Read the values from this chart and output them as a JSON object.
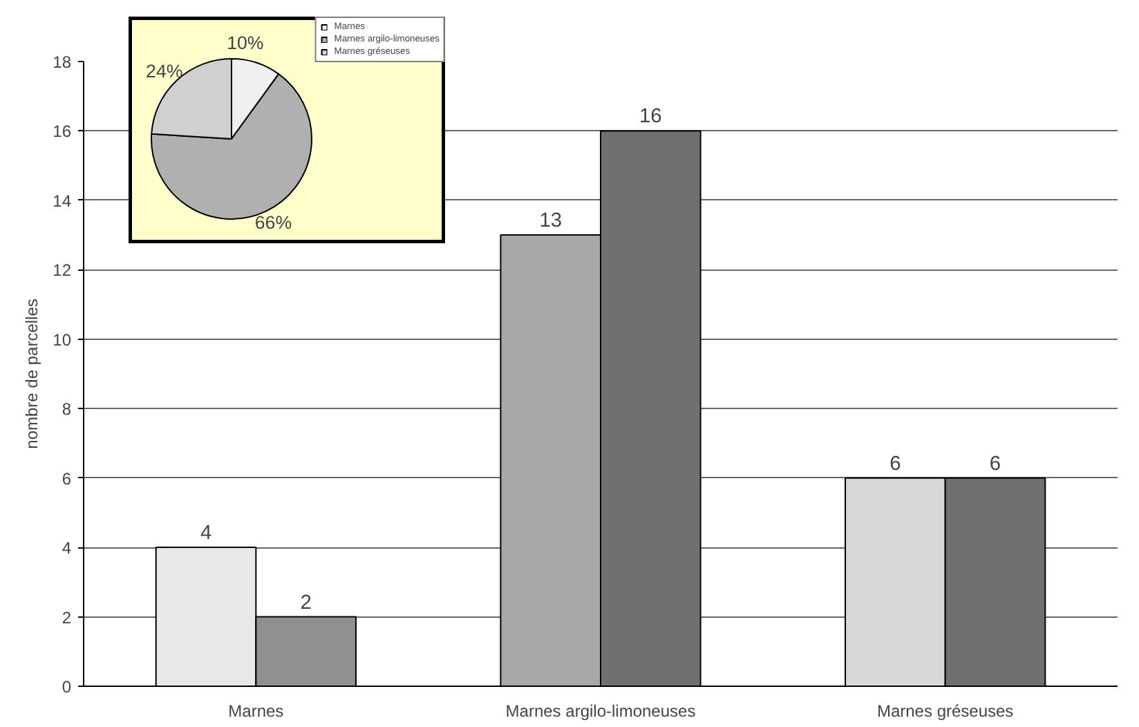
{
  "chart_data": [
    {
      "type": "bar",
      "ylabel": "nombre de parcelles",
      "categories": [
        "Marnes",
        "Marnes argilo-limoneuses",
        "Marnes gréseuses"
      ],
      "series": [
        {
          "colors": [
            "#e8e8e8",
            "#a8a8a8",
            "#d8d8d8"
          ],
          "values": [
            4,
            13,
            6
          ]
        },
        {
          "colors": [
            "#909090",
            "#707070",
            "#707070"
          ],
          "values": [
            2,
            16,
            6
          ]
        }
      ],
      "ylim": [
        0,
        18
      ],
      "yticks": [
        0,
        2,
        4,
        6,
        8,
        10,
        12,
        14,
        16,
        18
      ],
      "grid": "y",
      "data_labels": true,
      "legend": false
    },
    {
      "type": "pie",
      "categories": [
        "Marnes",
        "Marnes argilo-limoneuses",
        "Marnes gréseuses"
      ],
      "values": [
        10,
        66,
        24
      ],
      "colors": [
        "#f0f0f0",
        "#b0b0b0",
        "#d0d0d0"
      ],
      "data_labels": true,
      "value_labels": [
        "10%",
        "66%",
        "24%"
      ],
      "legend": "top right"
    }
  ]
}
